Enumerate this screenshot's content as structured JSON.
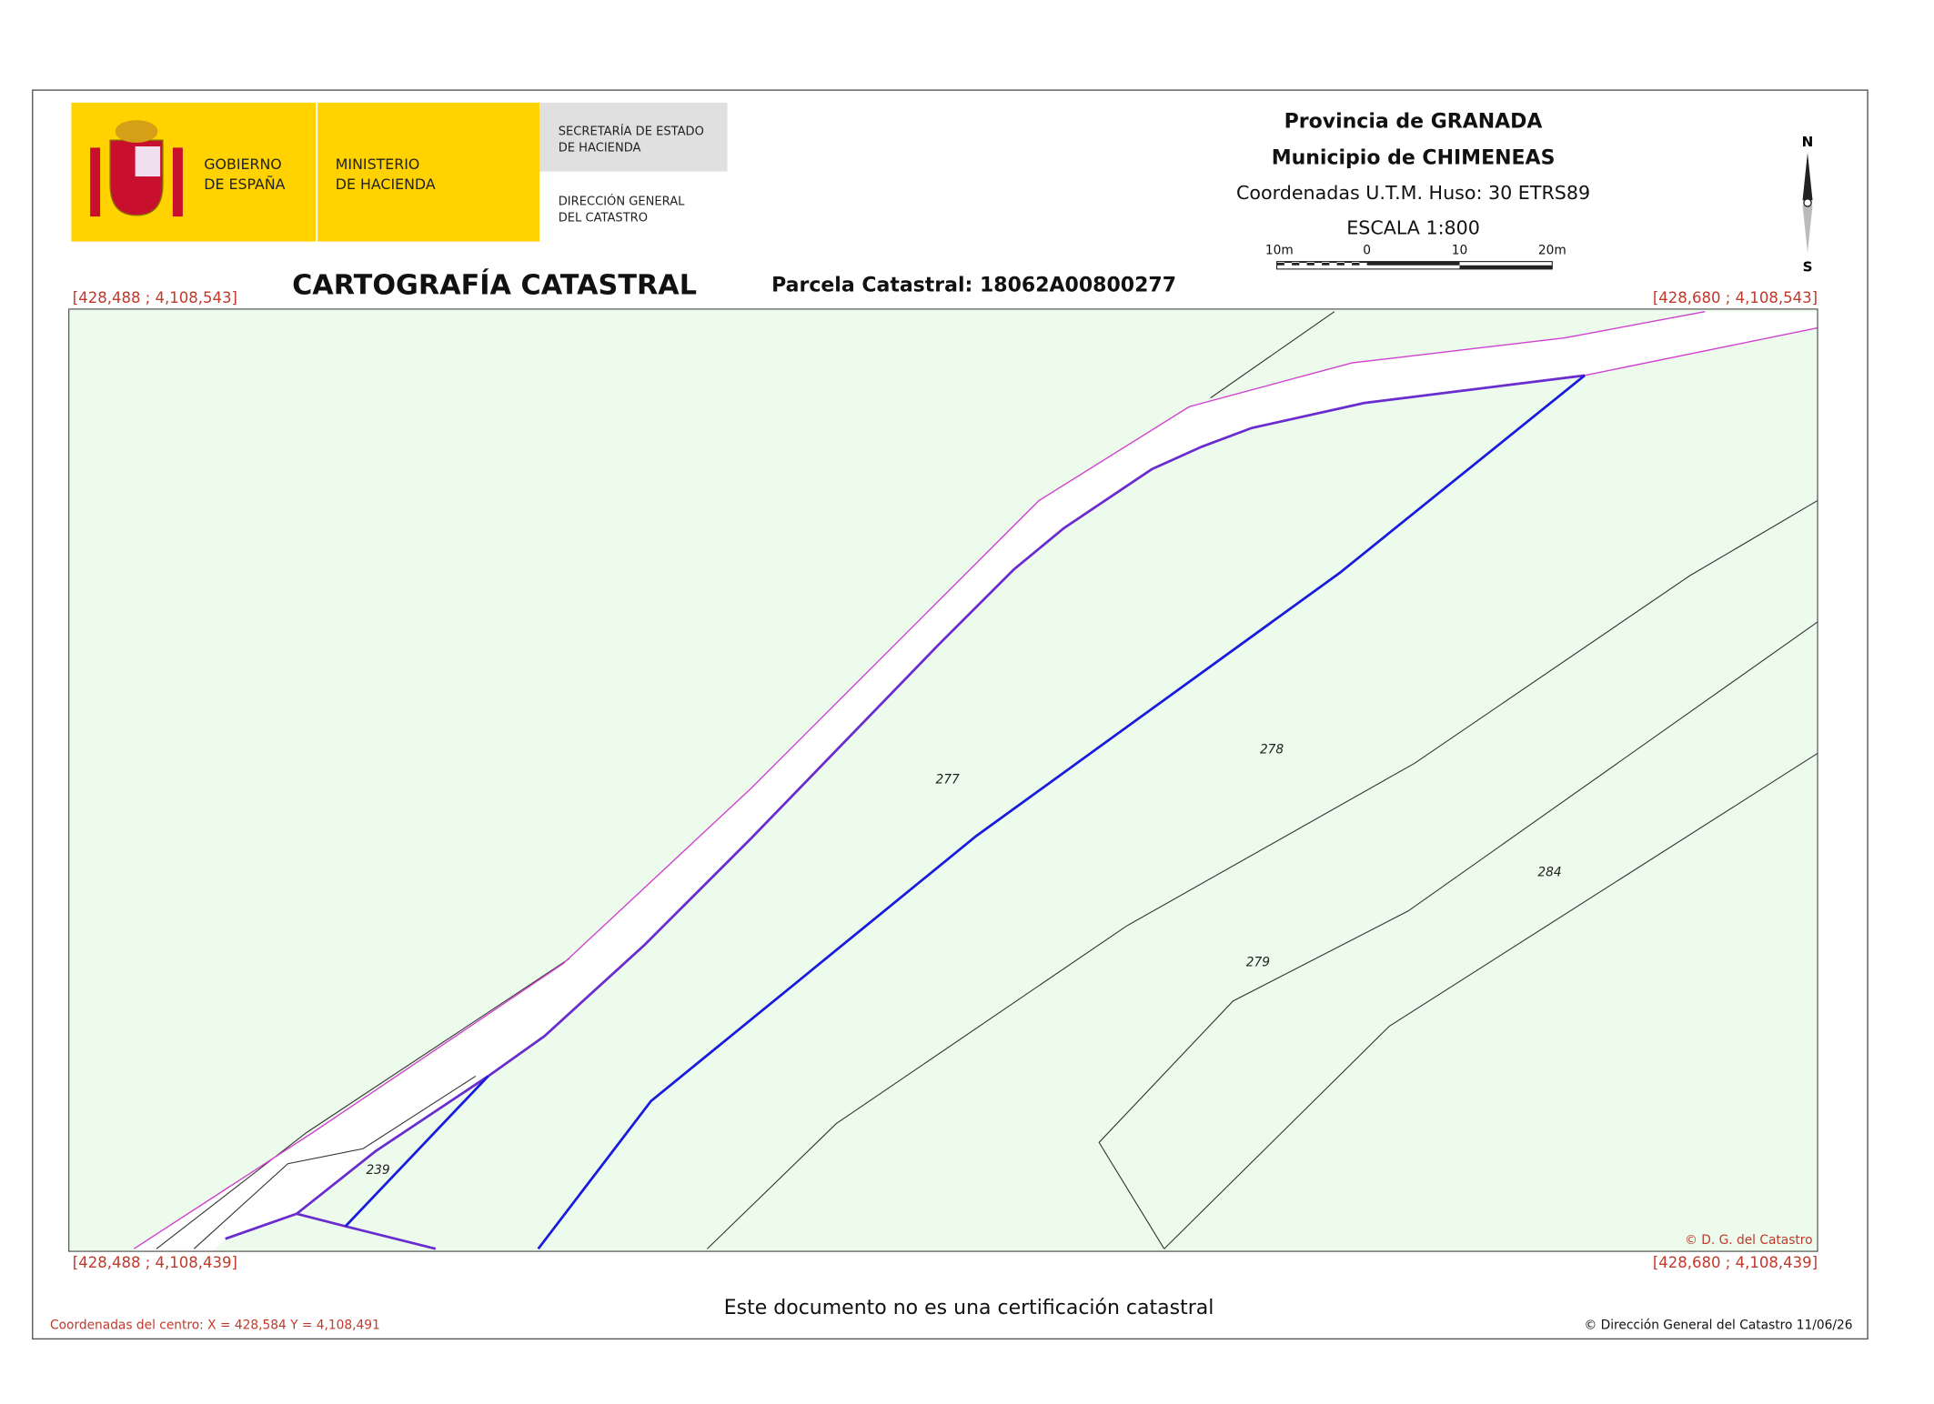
{
  "header": {
    "logo": {
      "gobierno": [
        "GOBIERNO",
        "DE ESPAÑA"
      ],
      "ministerio": [
        "MINISTERIO",
        "DE HACIENDA"
      ],
      "secretaria": [
        "SECRETARÍA DE ESTADO",
        "DE HACIENDA"
      ],
      "direccion": [
        "DIRECCIÓN GENERAL",
        "DEL CATASTRO"
      ]
    },
    "provincia": "Provincia de GRANADA",
    "municipio": "Municipio de CHIMENEAS",
    "coordenadas": "Coordenadas U.T.M. Huso: 30 ETRS89",
    "escala": "ESCALA 1:800",
    "scale_labels": [
      "10m",
      "0",
      "10",
      "20m"
    ],
    "north": "N",
    "south": "S"
  },
  "title": "CARTOGRAFÍA CATASTRAL",
  "parcela": "Parcela Catastral: 18062A00800277",
  "corners": {
    "top_left": "[428,488 ; 4,108,543]",
    "top_right": "[428,680 ; 4,108,543]",
    "bottom_left": "[428,488 ; 4,108,439]",
    "bottom_right": "[428,680 ; 4,108,439]"
  },
  "map": {
    "labels": [
      "277",
      "278",
      "279",
      "284",
      "239"
    ],
    "copyright": "© D. G. del Catastro"
  },
  "footer": {
    "note": "Este documento no es una certificación catastral",
    "centro": "Coordenadas del centro: X = 428,584 Y = 4,108,491",
    "copyright": "© Dirección General del Catastro 11/06/26"
  }
}
